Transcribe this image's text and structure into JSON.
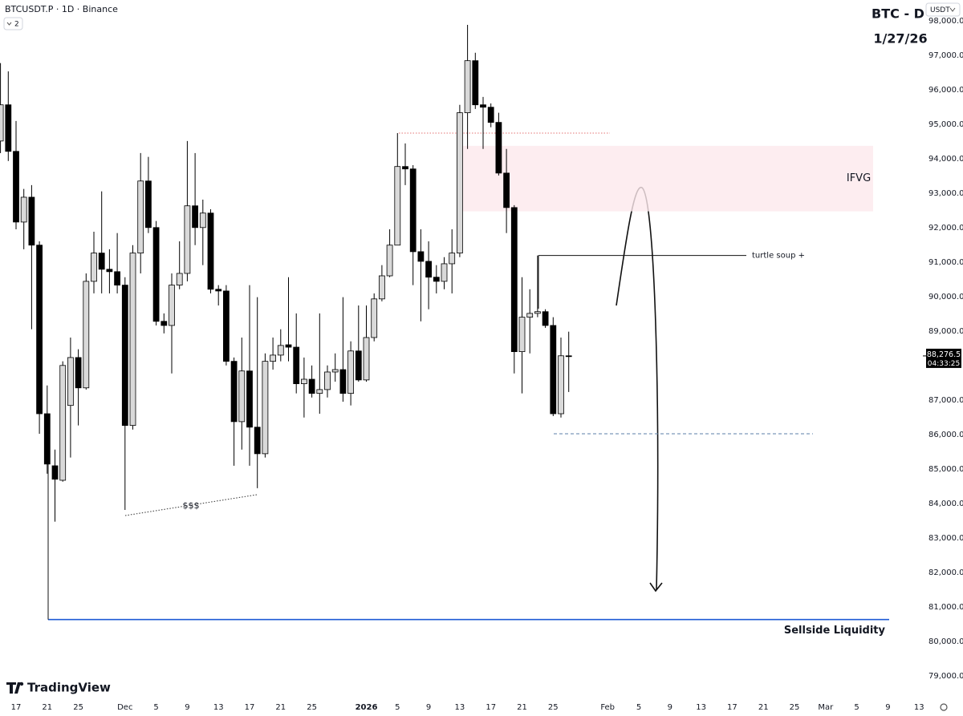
{
  "chart_data": {
    "type": "candlestick",
    "symbol": "BTCUSDT.P · 1D · Binance",
    "indicator_count": "2",
    "currency": "USDT",
    "title": "BTC - D",
    "subtitle": "1/27/26",
    "brand": "TradingView",
    "up_color": "#d9d9d9",
    "down_color": "#000000",
    "grid": false,
    "ylim": [
      78600,
      98600
    ],
    "yticks": [
      {
        "value": 79000,
        "label": "79,000.0"
      },
      {
        "value": 80000,
        "label": "80,000.0"
      },
      {
        "value": 81000,
        "label": "81,000.0"
      },
      {
        "value": 82000,
        "label": "82,000.0"
      },
      {
        "value": 83000,
        "label": "83,000.0"
      },
      {
        "value": 84000,
        "label": "84,000.0"
      },
      {
        "value": 85000,
        "label": "85,000.0"
      },
      {
        "value": 86000,
        "label": "86,000.0"
      },
      {
        "value": 87000,
        "label": "87,000.0"
      },
      {
        "value": 89000,
        "label": "89,000.0"
      },
      {
        "value": 90000,
        "label": "90,000.0"
      },
      {
        "value": 91000,
        "label": "91,000.0"
      },
      {
        "value": 92000,
        "label": "92,000.0"
      },
      {
        "value": 93000,
        "label": "93,000.0"
      },
      {
        "value": 94000,
        "label": "94,000.0"
      },
      {
        "value": 95000,
        "label": "95,000.0"
      },
      {
        "value": 96000,
        "label": "96,000.0"
      },
      {
        "value": 97000,
        "label": "97,000.0"
      },
      {
        "value": 98000,
        "label": "98,000.0"
      }
    ],
    "categories": [
      null,
      null,
      "17",
      null,
      null,
      null,
      "21",
      null,
      null,
      null,
      "25",
      null,
      null,
      null,
      null,
      null,
      "Dec",
      null,
      null,
      null,
      "5",
      null,
      null,
      null,
      "9",
      null,
      null,
      null,
      "13",
      null,
      null,
      null,
      "17",
      null,
      null,
      null,
      "21",
      null,
      null,
      null,
      "25",
      null,
      null,
      null,
      null,
      null,
      null,
      "2026",
      null,
      null,
      null,
      "5",
      null,
      null,
      null,
      "9",
      null,
      null,
      null,
      "13",
      null,
      null,
      null,
      "17",
      null,
      null,
      null,
      "21",
      null,
      null,
      null,
      "25",
      null,
      null,
      null,
      null,
      null,
      null,
      "Feb",
      null,
      null,
      null,
      "5",
      null,
      null,
      null,
      "9",
      null,
      null,
      null,
      "13",
      null,
      null,
      null,
      "17",
      null,
      null,
      null,
      "21",
      null,
      null,
      null,
      "25",
      null,
      null,
      null,
      "Mar",
      null,
      null,
      null,
      "5",
      null,
      null,
      null,
      "9",
      null,
      null,
      null,
      "13"
    ],
    "open": [
      94510,
      95560,
      94210,
      92160,
      92880,
      91490,
      86600,
      85090,
      84670,
      86840,
      88230,
      87350,
      90440,
      91260,
      90790,
      90720,
      90330,
      86260,
      91260,
      93350,
      92000,
      89280,
      89160,
      90330,
      90670,
      92630,
      92000,
      92420,
      90210,
      90160,
      88120,
      86370,
      87840,
      86210,
      85440,
      88120,
      88300,
      88600,
      88530,
      87470,
      87600,
      87190,
      87300,
      87810,
      87880,
      87190,
      88420,
      87580,
      88810,
      89930,
      90600,
      91490,
      93770,
      93700,
      91300,
      91020,
      90560,
      90440,
      90950,
      91260,
      95330,
      96840,
      95560,
      95490,
      95050,
      93580,
      92580,
      88400,
      89400,
      89510,
      89560,
      89160,
      86600,
      88280,
      null,
      null,
      null,
      null,
      null,
      null,
      null,
      null,
      null,
      null,
      null,
      null,
      null,
      null,
      null,
      null,
      null,
      null,
      null,
      null,
      null,
      null,
      null,
      null,
      null,
      null,
      null,
      null,
      null,
      null,
      null,
      null,
      null,
      null,
      null,
      null,
      null,
      null,
      null,
      null,
      null,
      null,
      null,
      null,
      null
    ],
    "high": [
      96770,
      96530,
      95090,
      93120,
      93230,
      91600,
      87420,
      85560,
      88120,
      88810,
      88470,
      90670,
      91880,
      93050,
      91370,
      91840,
      90560,
      91490,
      94160,
      94050,
      92190,
      89510,
      90670,
      91600,
      94510,
      94160,
      92810,
      92530,
      90330,
      90330,
      88230,
      88810,
      90330,
      89980,
      88350,
      88810,
      89050,
      90560,
      89510,
      88230,
      88000,
      89510,
      88000,
      88350,
      89980,
      88700,
      89740,
      89740,
      90090,
      90910,
      91950,
      94740,
      94440,
      93810,
      91950,
      91600,
      90910,
      91140,
      91950,
      95560,
      97880,
      97070,
      95790,
      95600,
      95330,
      94280,
      92650,
      90560,
      90210,
      91190,
      89630,
      89400,
      88810,
      88980,
      null,
      null,
      null,
      null,
      null,
      null,
      null,
      null,
      null,
      null,
      null,
      null,
      null,
      null,
      null,
      null,
      null,
      null,
      null,
      null,
      null,
      null,
      null,
      null,
      null,
      null,
      null,
      null,
      null,
      null,
      null,
      null,
      null,
      null,
      null,
      null,
      null,
      null,
      null,
      null,
      null,
      null,
      null,
      null,
      null
    ],
    "low": [
      94160,
      93930,
      91950,
      91370,
      89050,
      86020,
      84860,
      83470,
      84630,
      85330,
      86260,
      87300,
      90090,
      90090,
      90090,
      90090,
      83810,
      86140,
      90670,
      91840,
      89160,
      88930,
      87770,
      90210,
      90440,
      91490,
      90910,
      90090,
      89740,
      88000,
      85090,
      85560,
      85090,
      84440,
      85330,
      87880,
      88120,
      88120,
      87190,
      86490,
      87070,
      86600,
      87070,
      87530,
      86950,
      86840,
      87530,
      87530,
      88700,
      89860,
      90560,
      91490,
      93230,
      90330,
      89280,
      89630,
      90090,
      90210,
      90090,
      91140,
      94280,
      95440,
      94280,
      94910,
      93510,
      91840,
      87770,
      87190,
      88350,
      89400,
      89090,
      86530,
      86490,
      87230,
      null,
      null,
      null,
      null,
      null,
      null,
      null,
      null,
      null,
      null,
      null,
      null,
      null,
      null,
      null,
      null,
      null,
      null,
      null,
      null,
      null,
      null,
      null,
      null,
      null,
      null,
      null,
      null,
      null,
      null,
      null,
      null,
      null,
      null,
      null,
      null,
      null,
      null,
      null,
      null,
      null,
      null,
      null,
      null,
      null
    ],
    "close": [
      95560,
      94210,
      92160,
      92880,
      91490,
      86600,
      85140,
      84700,
      88000,
      88230,
      87350,
      90440,
      91260,
      90790,
      90720,
      90330,
      86260,
      91260,
      93350,
      92000,
      89280,
      89160,
      90330,
      90670,
      92630,
      92000,
      92420,
      90210,
      90160,
      88120,
      86370,
      87840,
      86210,
      85440,
      88120,
      88300,
      88580,
      88530,
      87470,
      87600,
      87190,
      87300,
      87810,
      87880,
      87190,
      88420,
      87580,
      88810,
      89930,
      90600,
      91490,
      93770,
      93700,
      91300,
      91020,
      90560,
      90440,
      90950,
      91260,
      95330,
      96840,
      95560,
      95490,
      95050,
      93580,
      92580,
      88400,
      89400,
      89510,
      89560,
      89160,
      86600,
      88280,
      88276.5,
      null,
      null,
      null,
      null,
      null,
      null,
      null,
      null,
      null,
      null,
      null,
      null,
      null,
      null,
      null,
      null,
      null,
      null,
      null,
      null,
      null,
      null,
      null,
      null,
      null,
      null,
      null,
      null,
      null,
      null,
      null,
      null,
      null,
      null,
      null,
      null,
      null,
      null,
      null,
      null,
      null,
      null,
      null,
      null,
      null
    ],
    "last_price_label": "88,276.5",
    "countdown": "04:33:25",
    "ifvg": {
      "label": "IFVG",
      "top": 94370,
      "bottom": 92470
    },
    "turtle_soup": {
      "label": "turtle soup +",
      "price": 91190
    },
    "high_line": {
      "price": 94740
    },
    "low_line": {
      "price": 86020
    },
    "sellside": {
      "label": "Sellside Liquidity",
      "price": 80630
    },
    "sweep_label": "$$$"
  }
}
